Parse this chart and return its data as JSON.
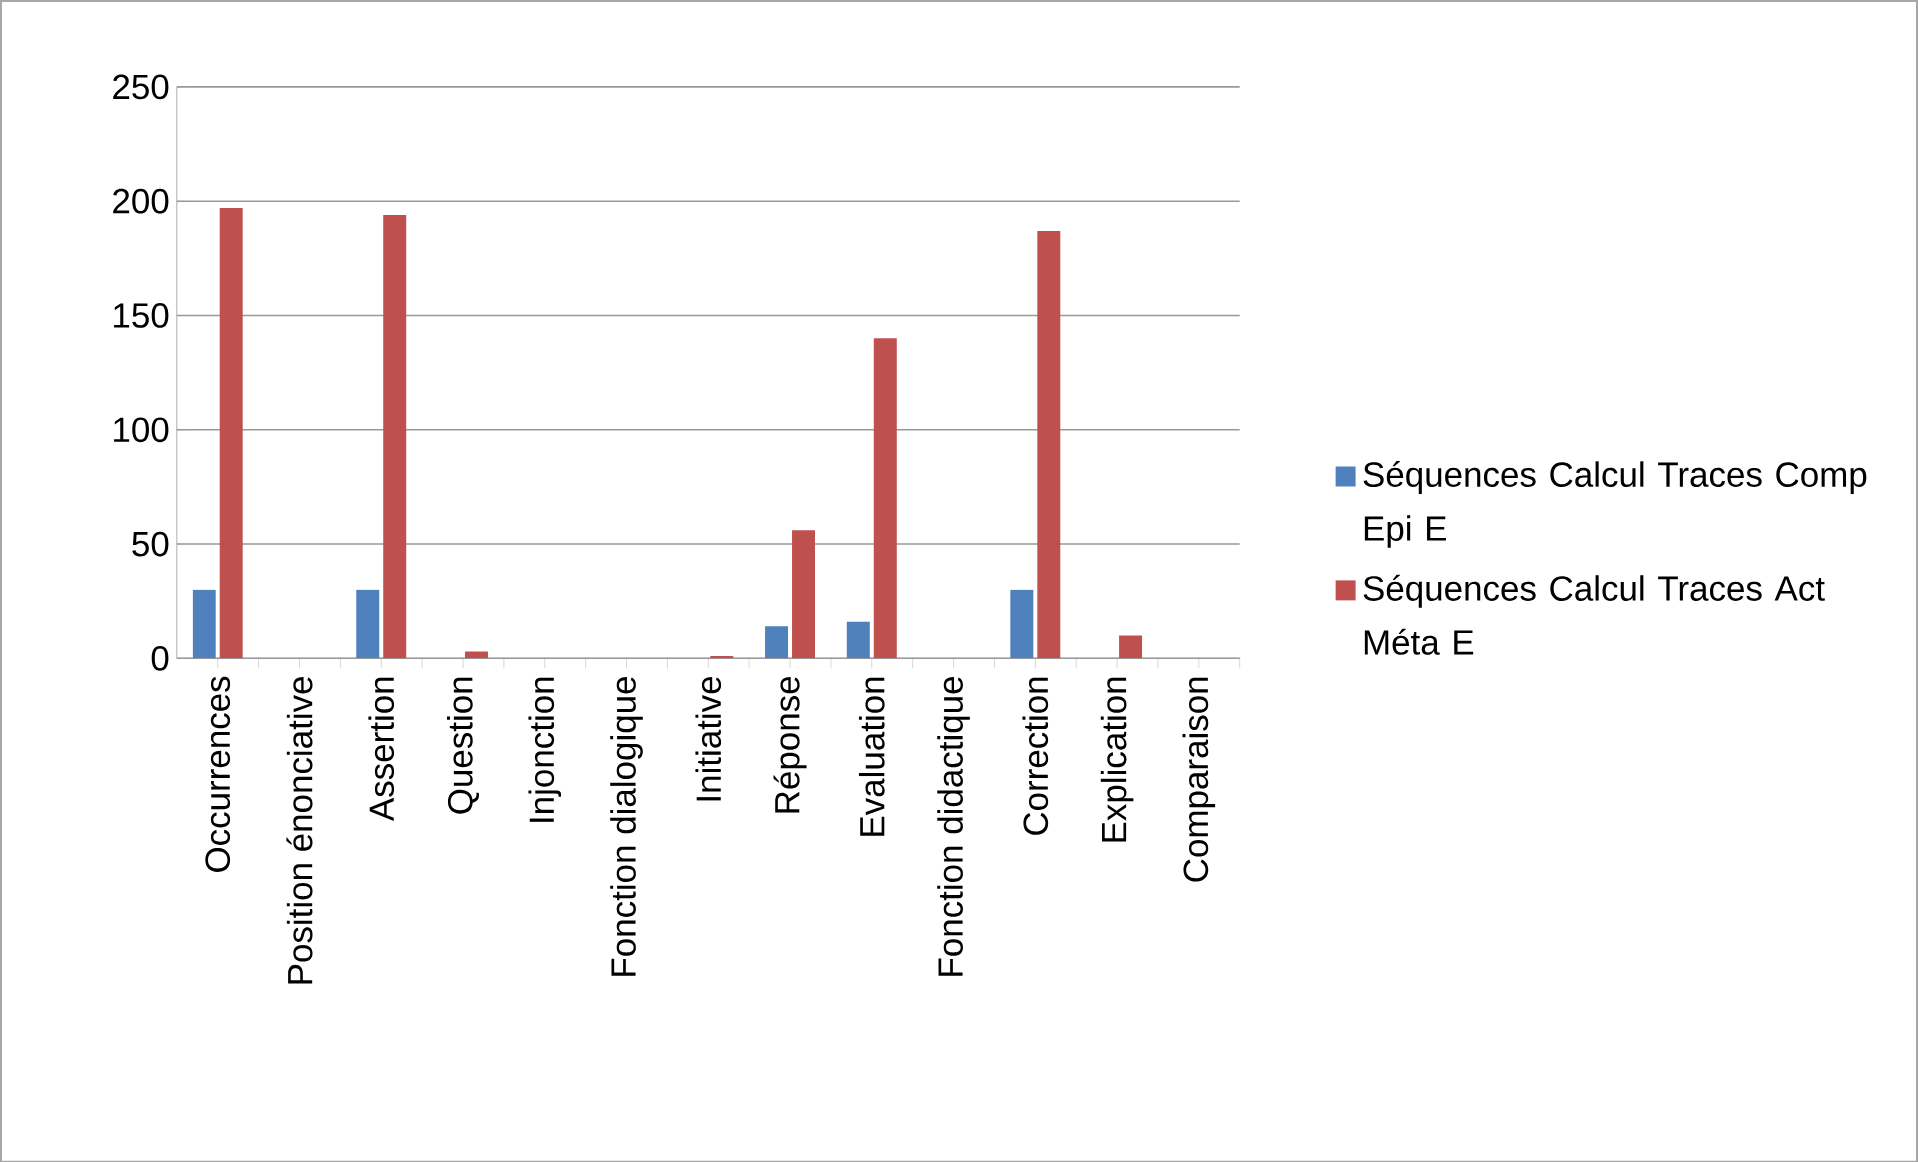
{
  "chart_data": {
    "type": "bar",
    "categories": [
      "Occurrences",
      "Position énonciative",
      "Assertion",
      "Question",
      "Injonction",
      "Fonction dialogique",
      "Initiative",
      "Réponse",
      "Evaluation",
      "Fonction didactique",
      "Correction",
      "Explication",
      "Comparaison"
    ],
    "series": [
      {
        "name": "Séquences Calcul Traces Comp Epi E",
        "color": "#4f81bd",
        "values": [
          30,
          0,
          30,
          0,
          0,
          0,
          0,
          14,
          16,
          0,
          30,
          0,
          0
        ]
      },
      {
        "name": "Séquences Calcul Traces Act Méta E",
        "color": "#c0504d",
        "values": [
          197,
          0,
          194,
          3,
          0,
          0,
          1,
          56,
          140,
          0,
          187,
          10,
          0
        ]
      }
    ],
    "ylim": [
      0,
      250
    ],
    "yticks": [
      0,
      50,
      100,
      150,
      200,
      250
    ],
    "grid": "y",
    "legend": "right"
  }
}
